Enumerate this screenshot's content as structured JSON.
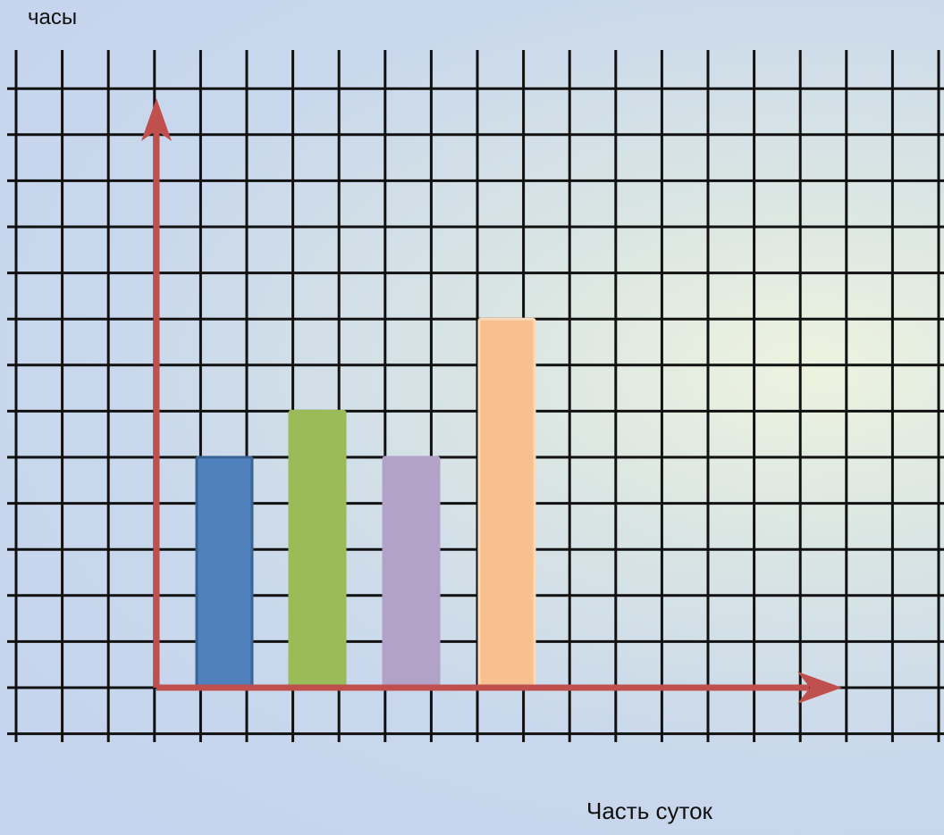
{
  "chart_data": {
    "type": "bar",
    "title": "",
    "ylabel": "часы",
    "xlabel": "Часть суток",
    "categories": [
      "",
      "",
      "",
      ""
    ],
    "values": [
      5,
      6,
      5,
      8
    ],
    "ylim": [
      0,
      13
    ],
    "grid": true,
    "tick_labels_shown": false,
    "colors": [
      "#4f81bd",
      "#9bbb59",
      "#b3a2c7",
      "#f9c08f"
    ],
    "axis_color": "#c0504d"
  }
}
